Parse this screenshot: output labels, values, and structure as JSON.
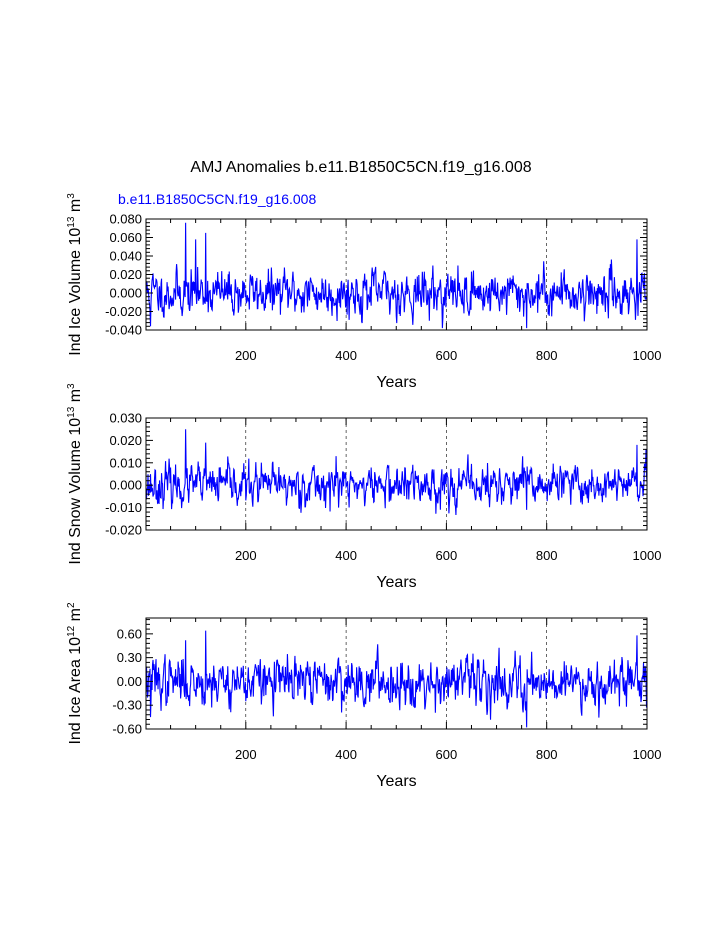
{
  "title": "AMJ Anomalies b.e11.B1850C5CN.f19_g16.008",
  "subtitle": "b.e11.B1850C5CN.f19_g16.008",
  "colors": {
    "series": "#0000ff",
    "subtitle": "#0000ff",
    "axis": "#000000"
  },
  "chart_data": [
    {
      "type": "line",
      "ylabel": "Ind Ice Volume",
      "units": {
        "mult_base": "10",
        "mult_exp": "13",
        "unit": "m",
        "unit_exp": "3"
      },
      "xlabel": "Years",
      "xlim": [
        1,
        1000
      ],
      "ylim": [
        -0.04,
        0.08
      ],
      "xticks": [
        200,
        400,
        600,
        800,
        1000
      ],
      "xtick_labels": [
        "200",
        "400",
        "600",
        "800",
        "1000"
      ],
      "yticks": [
        -0.04,
        -0.02,
        0.0,
        0.02,
        0.04,
        0.06,
        0.08
      ],
      "ytick_labels": [
        "-0.040",
        "-0.020",
        "0.000",
        "0.020",
        "0.040",
        "0.060",
        "0.080"
      ],
      "grid_x": "dashed",
      "series": [
        {
          "name": "Ind Ice Volume",
          "seed": 11,
          "std": 0.012,
          "peaks": [
            [
              80,
              0.076
            ],
            [
              120,
              0.065
            ],
            [
              100,
              0.058
            ],
            [
              980,
              0.058
            ],
            [
              760,
              -0.038
            ],
            [
              10,
              -0.036
            ]
          ]
        }
      ]
    },
    {
      "type": "line",
      "ylabel": "Ind Snow Volume",
      "units": {
        "mult_base": "10",
        "mult_exp": "13",
        "unit": "m",
        "unit_exp": "3"
      },
      "xlabel": "Years",
      "xlim": [
        1,
        1000
      ],
      "ylim": [
        -0.02,
        0.03
      ],
      "xticks": [
        200,
        400,
        600,
        800,
        1000
      ],
      "xtick_labels": [
        "200",
        "400",
        "600",
        "800",
        "1000"
      ],
      "yticks": [
        -0.02,
        -0.01,
        0.0,
        0.01,
        0.02,
        0.03
      ],
      "ytick_labels": [
        "-0.020",
        "-0.010",
        "0.000",
        "0.010",
        "0.020",
        "0.030"
      ],
      "grid_x": "dashed",
      "series": [
        {
          "name": "Ind Snow Volume",
          "seed": 23,
          "std": 0.0045,
          "peaks": [
            [
              80,
              0.025
            ],
            [
              120,
              0.019
            ],
            [
              980,
              0.018
            ],
            [
              380,
              0.013
            ],
            [
              760,
              -0.011
            ]
          ]
        }
      ]
    },
    {
      "type": "line",
      "ylabel": "Ind Ice Area",
      "units": {
        "mult_base": "10",
        "mult_exp": "12",
        "unit": "m",
        "unit_exp": "2"
      },
      "xlabel": "Years",
      "xlim": [
        1,
        1000
      ],
      "ylim": [
        -0.6,
        0.8
      ],
      "xticks": [
        200,
        400,
        600,
        800,
        1000
      ],
      "xtick_labels": [
        "200",
        "400",
        "600",
        "800",
        "1000"
      ],
      "yticks": [
        -0.6,
        -0.3,
        0.0,
        0.3,
        0.6
      ],
      "ytick_labels": [
        "-0.60",
        "-0.30",
        "0.00",
        "0.30",
        "0.60"
      ],
      "grid_x": "dashed",
      "series": [
        {
          "name": "Ind Ice Area",
          "seed": 37,
          "std": 0.15,
          "peaks": [
            [
              120,
              0.64
            ],
            [
              80,
              0.52
            ],
            [
              980,
              0.58
            ],
            [
              760,
              -0.58
            ],
            [
              10,
              -0.45
            ]
          ]
        }
      ]
    }
  ]
}
